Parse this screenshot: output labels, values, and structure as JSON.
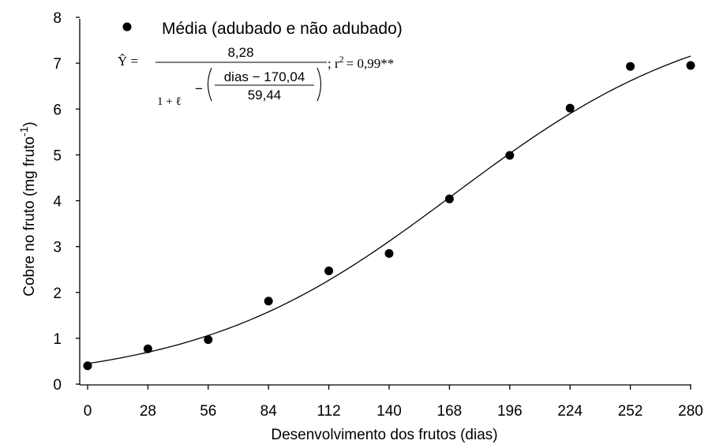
{
  "chart_data": {
    "type": "scatter",
    "xlabel": "Desenvolvimento dos frutos (dias)",
    "ylabel": {
      "base": "Cobre no fruto (mg fruto",
      "superscript": "-1",
      "close": ")"
    },
    "xlim": [
      0,
      280
    ],
    "ylim": [
      0,
      8
    ],
    "xticks": [
      "0",
      "28",
      "56",
      "84",
      "112",
      "140",
      "168",
      "196",
      "224",
      "252",
      "280"
    ],
    "yticks": [
      "0",
      "1",
      "2",
      "3",
      "4",
      "5",
      "6",
      "7",
      "8"
    ],
    "grid": false,
    "legend_position": "top-left",
    "series": [
      {
        "name": "Média (adubado e não adubado)",
        "marker": "filled-circle",
        "color": "#000000",
        "x": [
          0,
          28,
          56,
          84,
          112,
          140,
          168,
          196,
          224,
          252,
          280
        ],
        "y": [
          0.4,
          0.77,
          0.97,
          1.81,
          2.47,
          2.85,
          4.04,
          4.99,
          6.02,
          6.93,
          6.95
        ]
      }
    ],
    "fit": {
      "type": "logistic",
      "a": 8.28,
      "b": 170.04,
      "c": 59.44,
      "color": "#000000"
    },
    "equation": {
      "lhs": "Ŷ =",
      "numerator": "8,28",
      "denominator_base": "1 + ℓ",
      "exponent_sign": "−",
      "exponent_numerator": "dias − 170,04",
      "exponent_denominator": "59,44",
      "separator": "; r",
      "r_power": "2",
      "r_value": "= 0,99**"
    }
  }
}
